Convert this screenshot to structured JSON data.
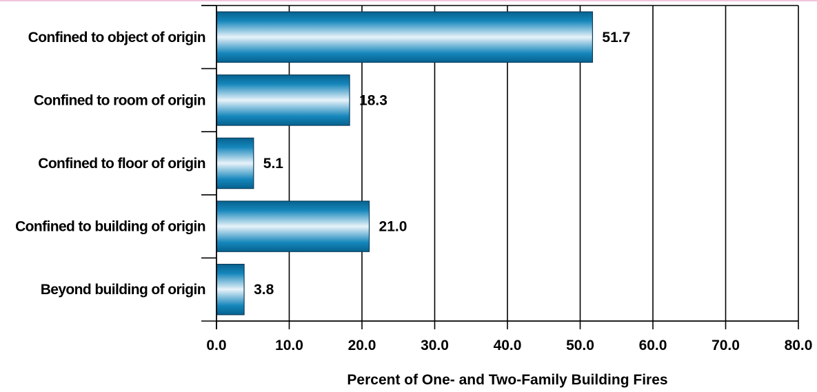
{
  "chart_data": {
    "type": "bar",
    "orientation": "horizontal",
    "categories": [
      "Confined to object of origin",
      "Confined to room of origin",
      "Confined to floor of origin",
      "Confined to building of origin",
      "Beyond building of origin"
    ],
    "values": [
      51.7,
      18.3,
      5.1,
      21.0,
      3.8
    ],
    "value_labels": [
      "51.7",
      "18.3",
      "5.1",
      "21.0",
      "3.8"
    ],
    "xlim": [
      0,
      80
    ],
    "xticks": [
      0,
      10,
      20,
      30,
      40,
      50,
      60,
      70,
      80
    ],
    "xtick_labels": [
      "0.0",
      "10.0",
      "20.0",
      "30.0",
      "40.0",
      "50.0",
      "60.0",
      "70.0",
      "80.0"
    ],
    "xlabel": "Percent of One- and Two-Family Building Fires",
    "grid": "vertical",
    "colors": {
      "bar_dark": "#0a6f9f",
      "bar_light": "#e6f1f8",
      "bar_stroke": "#0b3c5c",
      "axis": "#000000"
    }
  }
}
